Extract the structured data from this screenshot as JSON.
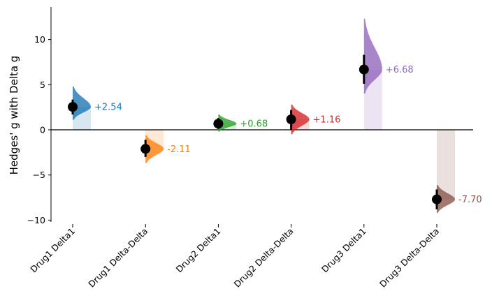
{
  "chart_data": {
    "type": "scatter",
    "subtype": "delta-delta estimation plot (effect size with bootstrap distributions)",
    "title": "",
    "xlabel": "",
    "ylabel": "Hedges' g with Delta g",
    "ylim": [
      -10.2,
      13.6
    ],
    "yticks": [
      -10,
      -5,
      0,
      5,
      10
    ],
    "ytick_labels": [
      "−10",
      "−5",
      "0",
      "5",
      "10"
    ],
    "zero_line": true,
    "grid": false,
    "categories": [
      "Drug1 Delta1",
      "Drug1 Delta-Delta",
      "Drug2 Delta1",
      "Drug2 Delta-Delta",
      "Drug3 Delta1",
      "Drug3 Delta-Delta"
    ],
    "series": [
      {
        "name": "Drug1 Delta1",
        "value": 2.54,
        "label": "+2.54",
        "ci": [
          1.7,
          3.35
        ],
        "dist_range": [
          1.1,
          4.8
        ],
        "color": "#1f77b4"
      },
      {
        "name": "Drug1 Delta-Delta",
        "value": -2.11,
        "label": "-2.11",
        "ci": [
          -3.0,
          -1.1
        ],
        "dist_range": [
          -3.7,
          -0.6
        ],
        "color": "#ff7f0e"
      },
      {
        "name": "Drug2 Delta1",
        "value": 0.68,
        "label": "+0.68",
        "ci": [
          0.1,
          1.3
        ],
        "dist_range": [
          -0.2,
          1.7
        ],
        "color": "#2ca02c"
      },
      {
        "name": "Drug2 Delta-Delta",
        "value": 1.16,
        "label": "+1.16",
        "ci": [
          0.0,
          2.2
        ],
        "dist_range": [
          -0.5,
          2.8
        ],
        "color": "#d62728"
      },
      {
        "name": "Drug3 Delta1",
        "value": 6.68,
        "label": "+6.68",
        "ci": [
          5.1,
          8.3
        ],
        "dist_range": [
          4.0,
          12.3
        ],
        "color": "#9467bd"
      },
      {
        "name": "Drug3 Delta-Delta",
        "value": -7.7,
        "label": "-7.70",
        "ci": [
          -8.8,
          -6.6
        ],
        "dist_range": [
          -9.2,
          -6.1
        ],
        "color": "#8c564b"
      }
    ]
  }
}
